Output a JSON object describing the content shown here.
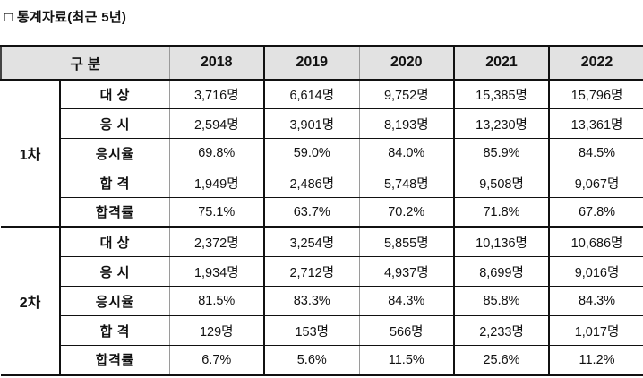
{
  "title": "□ 통계자료(최근 5년)",
  "table": {
    "corner_label": "구 분",
    "years": [
      "2018",
      "2019",
      "2020",
      "2021",
      "2022"
    ],
    "groups": [
      {
        "label": "1차",
        "rows": [
          {
            "metric": "대 상",
            "values": [
              "3,716명",
              "6,614명",
              "9,752명",
              "15,385명",
              "15,796명"
            ]
          },
          {
            "metric": "응 시",
            "values": [
              "2,594명",
              "3,901명",
              "8,193명",
              "13,230명",
              "13,361명"
            ]
          },
          {
            "metric": "응시율",
            "values": [
              "69.8%",
              "59.0%",
              "84.0%",
              "85.9%",
              "84.5%"
            ]
          },
          {
            "metric": "합 격",
            "values": [
              "1,949명",
              "2,486명",
              "5,748명",
              "9,508명",
              "9,067명"
            ]
          },
          {
            "metric": "합격률",
            "values": [
              "75.1%",
              "63.7%",
              "70.2%",
              "71.8%",
              "67.8%"
            ]
          }
        ]
      },
      {
        "label": "2차",
        "rows": [
          {
            "metric": "대 상",
            "values": [
              "2,372명",
              "3,254명",
              "5,855명",
              "10,136명",
              "10,686명"
            ]
          },
          {
            "metric": "응 시",
            "values": [
              "1,934명",
              "2,712명",
              "4,937명",
              "8,699명",
              "9,016명"
            ]
          },
          {
            "metric": "응시율",
            "values": [
              "81.5%",
              "83.3%",
              "84.3%",
              "85.8%",
              "84.3%"
            ]
          },
          {
            "metric": "합 격",
            "values": [
              "129명",
              "153명",
              "566명",
              "2,233명",
              "1,017명"
            ]
          },
          {
            "metric": "합격률",
            "values": [
              "6.7%",
              "5.6%",
              "11.5%",
              "25.6%",
              "11.2%"
            ]
          }
        ]
      }
    ],
    "colors": {
      "header_bg": "#e2e2e2",
      "border_dark": "#111111",
      "border_light": "#9a9a9a"
    }
  }
}
